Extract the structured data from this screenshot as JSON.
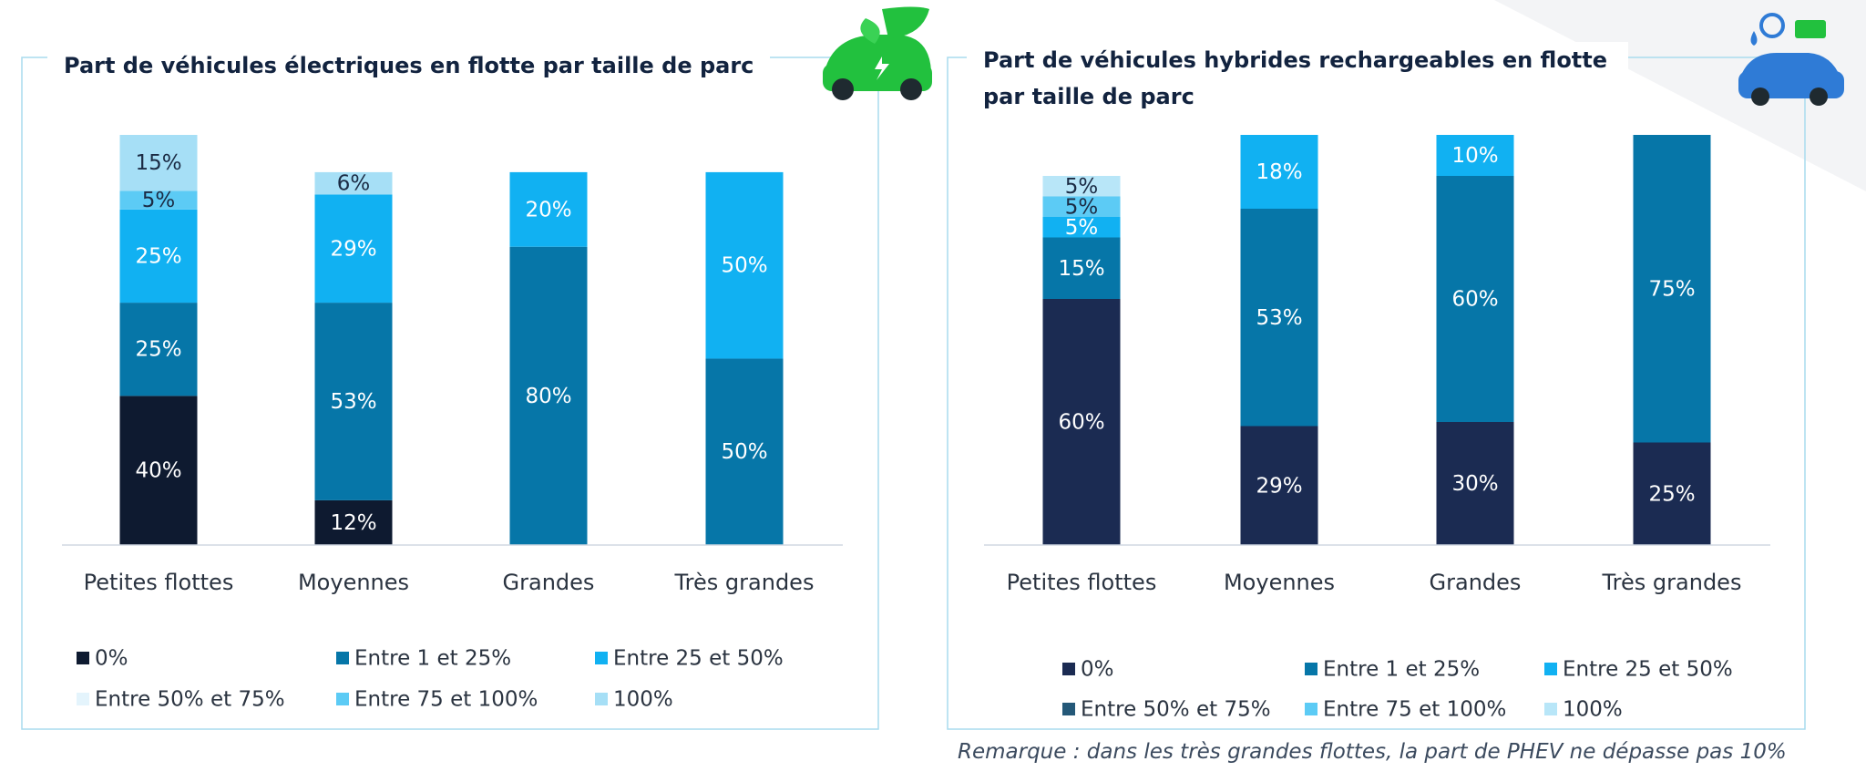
{
  "chart_data": [
    {
      "type": "bar",
      "stacked": true,
      "title": "Part de véhicules électriques en flotte par taille de parc",
      "categories": [
        "Petites flottes",
        "Moyennes",
        "Grandes",
        "Très grandes"
      ],
      "series": [
        {
          "name": "0%",
          "color": "#0e1a30",
          "values": [
            40,
            12,
            null,
            null
          ],
          "value_labels": [
            "40%",
            "12%",
            null,
            null
          ]
        },
        {
          "name": "Entre 1 et 25%",
          "color": "#0676a8",
          "values": [
            25,
            53,
            80,
            50
          ],
          "value_labels": [
            "25%",
            "53%",
            "80%",
            "50%"
          ]
        },
        {
          "name": "Entre 25 et 50%",
          "color": "#11b1f2",
          "values": [
            25,
            29,
            20,
            50
          ],
          "value_labels": [
            "25%",
            "29%",
            "20%",
            "50%"
          ]
        },
        {
          "name": "Entre 50% et 75%",
          "color": "#e4f4fc",
          "values": [
            null,
            null,
            null,
            null
          ],
          "value_labels": [
            null,
            null,
            null,
            null
          ]
        },
        {
          "name": "Entre 75 et 100%",
          "color": "#5ccbf5",
          "values": [
            5,
            null,
            null,
            null
          ],
          "value_labels": [
            "5%",
            null,
            null,
            null
          ]
        },
        {
          "name": "100%",
          "color": "#a6dff6",
          "values": [
            15,
            6,
            null,
            null
          ],
          "value_labels": [
            "15%",
            "6%",
            null,
            null
          ]
        }
      ]
    },
    {
      "type": "bar",
      "stacked": true,
      "title": "Part de véhicules hybrides rechargeables en flotte par taille de parc",
      "categories": [
        "Petites flottes",
        "Moyennes",
        "Grandes",
        "Très grandes"
      ],
      "series": [
        {
          "name": "0%",
          "color": "#1b2b52",
          "values": [
            60,
            29,
            30,
            25
          ],
          "value_labels": [
            "60%",
            "29%",
            "30%",
            "25%"
          ]
        },
        {
          "name": "Entre 1 et 25%",
          "color": "#0676a8",
          "values": [
            15,
            53,
            60,
            75
          ],
          "value_labels": [
            "15%",
            "53%",
            "60%",
            "75%"
          ]
        },
        {
          "name": "Entre 25 et 50%",
          "color": "#11b1f2",
          "values": [
            5,
            18,
            10,
            null
          ],
          "value_labels": [
            "5%",
            "18%",
            "10%",
            null
          ]
        },
        {
          "name": "Entre 50% et 75%",
          "color": "#245878",
          "values": [
            null,
            null,
            null,
            null
          ],
          "value_labels": [
            null,
            null,
            null,
            null
          ]
        },
        {
          "name": "Entre 75 et 100%",
          "color": "#5ccbf5",
          "values": [
            5,
            null,
            null,
            null
          ],
          "value_labels": [
            "5%",
            null,
            null,
            null
          ]
        },
        {
          "name": "100%",
          "color": "#b8e6f8",
          "values": [
            5,
            null,
            null,
            null
          ],
          "value_labels": [
            "5%",
            null,
            null,
            null
          ]
        }
      ],
      "note": "Remarque : dans les très grandes flottes, la part de PHEV ne dépasse pas 10%"
    }
  ]
}
